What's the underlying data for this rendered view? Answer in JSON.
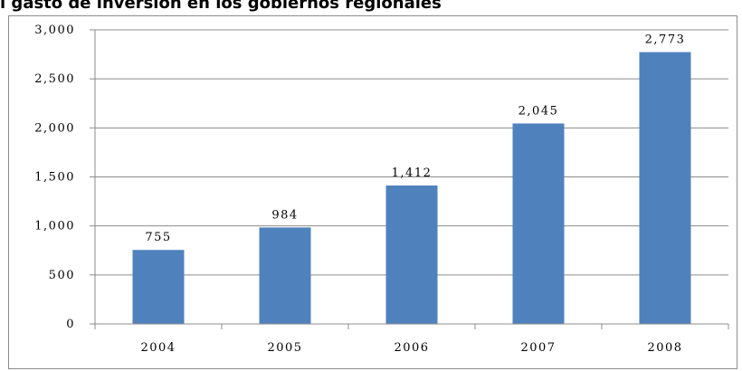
{
  "title": "l gasto de inversión en los gobiernos regionales",
  "colors": {
    "bar": "#4f81bd",
    "grid": "#8c8c8c",
    "axis": "#8c8c8c"
  },
  "chart_data": {
    "type": "bar",
    "title": "l gasto de inversión en los gobiernos regionales",
    "xlabel": "",
    "ylabel": "",
    "categories": [
      "2004",
      "2005",
      "2006",
      "2007",
      "2008"
    ],
    "values": [
      755,
      984,
      1412,
      2045,
      2773
    ],
    "data_labels": [
      "755",
      "984",
      "1,412",
      "2,045",
      "2,773"
    ],
    "ylim": [
      0,
      3000
    ],
    "yticks": [
      0,
      500,
      1000,
      1500,
      2000,
      2500,
      3000
    ],
    "ytick_labels": [
      "0",
      "500",
      "1,000",
      "1,500",
      "2,000",
      "2,500",
      "3,000"
    ],
    "grid": true,
    "legend": "none"
  }
}
